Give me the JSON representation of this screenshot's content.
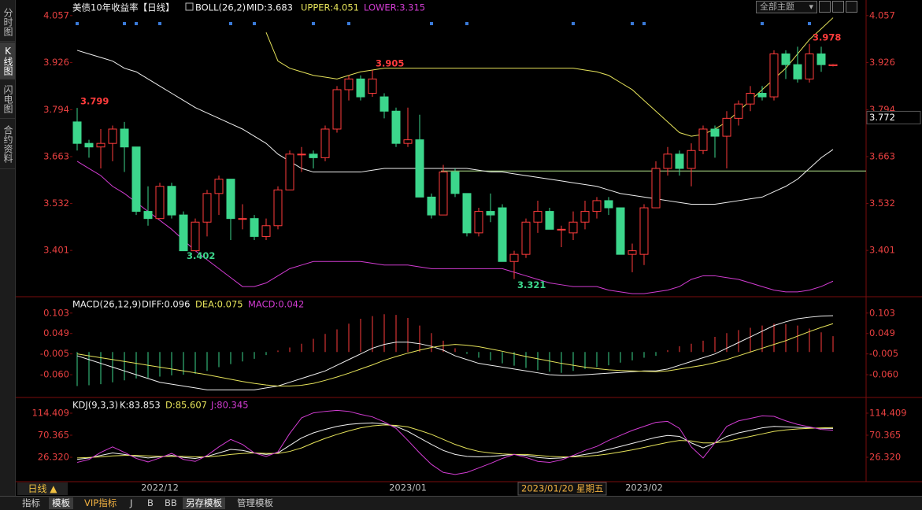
{
  "ui": {
    "side_tabs": [
      "分时图",
      "K线图",
      "闪电图",
      "合约资料"
    ],
    "bottom_tabs": [
      "指标",
      "模板",
      "VIP指标",
      "J",
      "B",
      "BB",
      "另存模板",
      "管理模板"
    ],
    "period": "日线 ▲",
    "theme": "全部主题"
  },
  "chart_data": [
    {
      "type": "candlestick",
      "title": "美债10年收益率【日线】",
      "indicator": "BOLL(26,2)",
      "up_color": "#ff3c3c",
      "down_color": "#3cd68c",
      "categories": [
        null,
        null,
        null,
        null,
        null,
        null,
        null,
        "2022/12",
        null,
        null,
        null,
        null,
        null,
        null,
        null,
        null,
        null,
        null,
        null,
        null,
        null,
        null,
        null,
        null,
        null,
        null,
        null,
        null,
        "2023/01",
        null,
        null,
        null,
        null,
        null,
        null,
        null,
        null,
        null,
        null,
        null,
        null,
        null,
        null,
        null,
        null,
        null,
        null,
        null,
        "2023/02",
        null,
        null,
        null,
        null,
        null,
        null,
        null,
        null,
        null,
        null,
        null,
        null,
        null,
        null,
        null,
        null
      ],
      "open": [
        3.76,
        3.7,
        3.69,
        3.7,
        3.74,
        3.69,
        3.51,
        3.49,
        3.58,
        3.5,
        3.4,
        3.48,
        3.56,
        3.6,
        3.49,
        3.49,
        3.44,
        3.47,
        3.57,
        3.67,
        3.67,
        3.66,
        3.74,
        3.85,
        3.88,
        3.84,
        3.83,
        3.79,
        3.7,
        3.71,
        3.55,
        3.5,
        3.62,
        3.56,
        3.45,
        3.51,
        3.52,
        3.37,
        3.39,
        3.48,
        3.51,
        3.46,
        3.45,
        3.48,
        3.51,
        3.54,
        3.52,
        3.39,
        3.39,
        3.52,
        3.63,
        3.67,
        3.63,
        3.68,
        3.74,
        3.72,
        3.77,
        3.81,
        3.84,
        3.83,
        3.95,
        3.92,
        3.88,
        3.95,
        3.917
      ],
      "high": [
        3.799,
        3.71,
        3.74,
        3.75,
        3.76,
        3.69,
        3.58,
        3.59,
        3.59,
        3.51,
        3.49,
        3.57,
        3.61,
        3.6,
        3.53,
        3.5,
        3.49,
        3.58,
        3.68,
        3.69,
        3.68,
        3.75,
        3.86,
        3.89,
        3.89,
        3.905,
        3.84,
        3.8,
        3.8,
        3.78,
        3.56,
        3.64,
        3.63,
        3.56,
        3.52,
        3.56,
        3.53,
        3.4,
        3.49,
        3.54,
        3.52,
        3.47,
        3.51,
        3.54,
        3.55,
        3.55,
        3.52,
        3.42,
        3.53,
        3.65,
        3.69,
        3.68,
        3.7,
        3.75,
        3.75,
        3.79,
        3.82,
        3.86,
        3.86,
        3.96,
        3.96,
        3.97,
        3.978,
        3.97,
        3.922
      ],
      "low": [
        3.68,
        3.66,
        3.63,
        3.65,
        3.62,
        3.5,
        3.47,
        3.49,
        3.49,
        3.402,
        3.4,
        3.44,
        3.5,
        3.43,
        3.46,
        3.43,
        3.43,
        3.46,
        3.57,
        3.62,
        3.63,
        3.65,
        3.73,
        3.82,
        3.82,
        3.83,
        3.77,
        3.69,
        3.69,
        3.55,
        3.49,
        3.5,
        3.55,
        3.44,
        3.44,
        3.48,
        3.37,
        3.321,
        3.38,
        3.45,
        3.46,
        3.41,
        3.43,
        3.46,
        3.49,
        3.5,
        3.39,
        3.34,
        3.36,
        3.52,
        3.61,
        3.61,
        3.58,
        3.67,
        3.66,
        3.63,
        3.75,
        3.79,
        3.82,
        3.82,
        3.88,
        3.87,
        3.87,
        3.9,
        3.915
      ],
      "close": [
        3.7,
        3.69,
        3.7,
        3.74,
        3.69,
        3.51,
        3.49,
        3.58,
        3.5,
        3.4,
        3.48,
        3.56,
        3.6,
        3.49,
        3.49,
        3.44,
        3.47,
        3.57,
        3.67,
        3.67,
        3.66,
        3.74,
        3.85,
        3.88,
        3.83,
        3.88,
        3.79,
        3.7,
        3.71,
        3.55,
        3.5,
        3.62,
        3.56,
        3.45,
        3.51,
        3.5,
        3.37,
        3.39,
        3.48,
        3.51,
        3.46,
        3.46,
        3.48,
        3.51,
        3.54,
        3.52,
        3.39,
        3.4,
        3.52,
        3.63,
        3.67,
        3.63,
        3.68,
        3.74,
        3.72,
        3.77,
        3.81,
        3.84,
        3.83,
        3.95,
        3.92,
        3.88,
        3.95,
        3.92,
        3.92
      ],
      "series": [
        {
          "name": "MID:3.683",
          "color": "#f0f0f0",
          "values": [
            3.96,
            3.95,
            3.94,
            3.93,
            3.91,
            3.9,
            3.88,
            3.86,
            3.84,
            3.82,
            3.8,
            3.785,
            3.77,
            3.755,
            3.74,
            3.72,
            3.7,
            3.67,
            3.65,
            3.63,
            3.62,
            3.62,
            3.62,
            3.62,
            3.62,
            3.625,
            3.63,
            3.63,
            3.63,
            3.63,
            3.63,
            3.63,
            3.63,
            3.63,
            3.625,
            3.62,
            3.62,
            3.615,
            3.61,
            3.605,
            3.6,
            3.595,
            3.59,
            3.585,
            3.58,
            3.57,
            3.56,
            3.555,
            3.55,
            3.545,
            3.54,
            3.535,
            3.53,
            3.53,
            3.53,
            3.535,
            3.54,
            3.545,
            3.55,
            3.565,
            3.58,
            3.6,
            3.63,
            3.66,
            3.683
          ]
        },
        {
          "name": "UPPER:4.051",
          "color": "#e6e35a",
          "values": [
            null,
            null,
            null,
            null,
            null,
            null,
            null,
            null,
            null,
            null,
            null,
            null,
            null,
            null,
            null,
            null,
            4.01,
            3.93,
            3.91,
            3.9,
            3.89,
            3.885,
            3.88,
            3.89,
            3.9,
            3.905,
            3.91,
            3.91,
            3.91,
            3.91,
            3.91,
            3.91,
            3.91,
            3.91,
            3.91,
            3.91,
            3.91,
            3.91,
            3.91,
            3.91,
            3.91,
            3.91,
            3.91,
            3.905,
            3.9,
            3.89,
            3.87,
            3.85,
            3.82,
            3.79,
            3.76,
            3.73,
            3.72,
            3.725,
            3.74,
            3.76,
            3.79,
            3.82,
            3.85,
            3.88,
            3.91,
            3.95,
            3.99,
            4.02,
            4.051
          ]
        },
        {
          "name": "LOWER:3.315",
          "color": "#d23cd2",
          "values": [
            3.65,
            3.63,
            3.61,
            3.58,
            3.56,
            3.535,
            3.51,
            3.485,
            3.46,
            3.43,
            3.4,
            3.375,
            3.35,
            3.325,
            3.3,
            3.3,
            3.31,
            3.33,
            3.35,
            3.36,
            3.37,
            3.37,
            3.37,
            3.37,
            3.37,
            3.365,
            3.36,
            3.36,
            3.36,
            3.355,
            3.35,
            3.35,
            3.35,
            3.35,
            3.35,
            3.35,
            3.35,
            3.34,
            3.33,
            3.32,
            3.31,
            3.305,
            3.3,
            3.3,
            3.3,
            3.29,
            3.285,
            3.28,
            3.28,
            3.285,
            3.29,
            3.3,
            3.32,
            3.33,
            3.33,
            3.325,
            3.32,
            3.31,
            3.3,
            3.29,
            3.285,
            3.285,
            3.29,
            3.3,
            3.315
          ]
        }
      ],
      "hline": 3.623,
      "hline_color": "#b4e68c",
      "annotations": [
        3.799,
        3.402,
        3.905,
        3.321,
        3.978
      ],
      "cursor_value": 3.772,
      "cursor_label": "2023/01/20 星期五",
      "ylim": [
        3.276,
        4.083
      ],
      "yticks": [
        4.057,
        3.926,
        3.794,
        3.663,
        3.532,
        3.401
      ]
    },
    {
      "type": "macd",
      "title": "MACD(26,12,9)",
      "series": [
        {
          "name": "DIFF:0.096",
          "color": "#f0f0f0",
          "values": [
            -0.01,
            -0.02,
            -0.03,
            -0.04,
            -0.05,
            -0.06,
            -0.07,
            -0.08,
            -0.085,
            -0.09,
            -0.095,
            -0.1,
            -0.1,
            -0.1,
            -0.1,
            -0.1,
            -0.095,
            -0.09,
            -0.08,
            -0.07,
            -0.06,
            -0.05,
            -0.035,
            -0.02,
            -0.005,
            0.01,
            0.02,
            0.026,
            0.026,
            0.022,
            0.015,
            0.005,
            -0.01,
            -0.02,
            -0.03,
            -0.035,
            -0.04,
            -0.045,
            -0.05,
            -0.055,
            -0.06,
            -0.062,
            -0.062,
            -0.06,
            -0.058,
            -0.056,
            -0.054,
            -0.052,
            -0.05,
            -0.05,
            -0.045,
            -0.035,
            -0.025,
            -0.015,
            -0.005,
            0.01,
            0.025,
            0.04,
            0.055,
            0.07,
            0.08,
            0.088,
            0.092,
            0.095,
            0.096
          ]
        },
        {
          "name": "DEA:0.075",
          "color": "#e6e35a",
          "values": [
            -0.005,
            -0.01,
            -0.015,
            -0.02,
            -0.025,
            -0.03,
            -0.035,
            -0.04,
            -0.045,
            -0.05,
            -0.055,
            -0.06,
            -0.066,
            -0.072,
            -0.078,
            -0.083,
            -0.087,
            -0.09,
            -0.09,
            -0.088,
            -0.083,
            -0.075,
            -0.066,
            -0.056,
            -0.045,
            -0.034,
            -0.022,
            -0.012,
            -0.003,
            0.005,
            0.012,
            0.017,
            0.02,
            0.018,
            0.014,
            0.008,
            0.002,
            -0.005,
            -0.012,
            -0.018,
            -0.024,
            -0.03,
            -0.035,
            -0.04,
            -0.044,
            -0.047,
            -0.049,
            -0.05,
            -0.051,
            -0.052,
            -0.05,
            -0.045,
            -0.04,
            -0.035,
            -0.028,
            -0.02,
            -0.01,
            0.0,
            0.01,
            0.02,
            0.03,
            0.042,
            0.054,
            0.065,
            0.075
          ]
        }
      ],
      "histogram": {
        "name": "MACD:0.042",
        "color": "#d23cd2",
        "up_color": "#ff3c3c",
        "down_color": "#3cd68c",
        "values": [
          -0.09,
          -0.088,
          -0.085,
          -0.08,
          -0.075,
          -0.07,
          -0.068,
          -0.065,
          -0.062,
          -0.06,
          -0.058,
          -0.05,
          -0.04,
          -0.032,
          -0.025,
          -0.018,
          -0.008,
          0.004,
          0.012,
          0.022,
          0.035,
          0.048,
          0.06,
          0.075,
          0.088,
          0.095,
          0.1,
          0.098,
          0.09,
          0.07,
          0.05,
          0.03,
          0.01,
          -0.005,
          -0.015,
          -0.022,
          -0.03,
          -0.036,
          -0.042,
          -0.048,
          -0.052,
          -0.055,
          -0.05,
          -0.045,
          -0.04,
          -0.035,
          -0.028,
          -0.022,
          -0.015,
          -0.01,
          0.005,
          0.015,
          0.022,
          0.03,
          0.04,
          0.05,
          0.058,
          0.064,
          0.07,
          0.075,
          0.074,
          0.07,
          0.062,
          0.052,
          0.042
        ]
      },
      "ylim": [
        -0.116,
        0.14
      ],
      "yticks": [
        0.103,
        0.049,
        -0.005,
        {
          "value": -0.06,
          "label": "-0.060"
        }
      ]
    },
    {
      "type": "kdj",
      "title": "KDJ(9,3,3)",
      "series": [
        {
          "name": "K:83.853",
          "color": "#f0f0f0",
          "values": [
            22,
            25,
            30,
            35,
            32,
            28,
            25,
            27,
            30,
            26,
            24,
            28,
            35,
            42,
            40,
            35,
            32,
            35,
            50,
            65,
            75,
            82,
            88,
            92,
            94,
            95,
            93,
            88,
            78,
            65,
            52,
            40,
            32,
            28,
            27,
            28,
            30,
            32,
            30,
            26,
            24,
            25,
            28,
            32,
            36,
            42,
            48,
            54,
            60,
            66,
            70,
            68,
            55,
            45,
            55,
            68,
            75,
            80,
            85,
            88,
            87,
            86,
            85,
            84,
            83.853
          ]
        },
        {
          "name": "D:85.607",
          "color": "#e6e35a",
          "values": [
            25,
            26,
            27,
            29,
            30,
            30,
            29,
            28,
            28,
            28,
            27,
            27,
            29,
            32,
            34,
            35,
            34,
            34,
            38,
            45,
            55,
            64,
            72,
            79,
            85,
            89,
            91,
            90,
            87,
            80,
            72,
            62,
            52,
            44,
            38,
            35,
            33,
            32,
            32,
            30,
            28,
            27,
            27,
            28,
            30,
            33,
            37,
            41,
            46,
            51,
            56,
            60,
            59,
            55,
            55,
            58,
            63,
            68,
            73,
            78,
            81,
            83,
            84,
            85,
            85.607
          ]
        },
        {
          "name": "J:80.345",
          "color": "#d23cd2",
          "values": [
            16,
            22,
            36,
            47,
            36,
            24,
            17,
            25,
            34,
            22,
            18,
            30,
            47,
            62,
            52,
            35,
            28,
            37,
            74,
            105,
            115,
            118,
            120,
            118,
            112,
            107,
            97,
            84,
            60,
            35,
            12,
            -4,
            -8,
            -4,
            5,
            14,
            24,
            32,
            26,
            18,
            16,
            21,
            30,
            40,
            48,
            60,
            70,
            80,
            88,
            96,
            98,
            84,
            47,
            25,
            55,
            88,
            99,
            104,
            109,
            108,
            99,
            92,
            87,
            82,
            80.345
          ]
        }
      ],
      "ylim": [
        -19.3,
        141.1
      ],
      "yticks": [
        114.409,
        70.365,
        {
          "value": 26.32,
          "label": "26.320"
        }
      ]
    }
  ]
}
